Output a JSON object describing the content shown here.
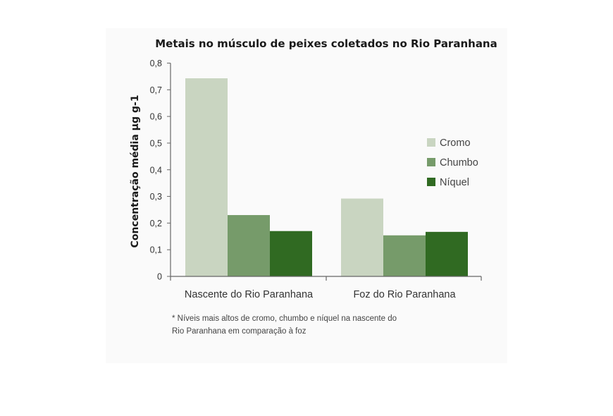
{
  "chart_data": {
    "type": "bar",
    "title": "Metais no músculo de peixes coletados no Rio Paranhana",
    "xlabel": "",
    "ylabel": "Concentração média µg g-1",
    "categories": [
      "Nascente do Rio Paranhana",
      "Foz do Rio Paranhana"
    ],
    "series": [
      {
        "name": "Cromo",
        "color": "#c9d5c1",
        "values": [
          0.743,
          0.292
        ]
      },
      {
        "name": "Chumbo",
        "color": "#769b6a",
        "values": [
          0.23,
          0.154
        ]
      },
      {
        "name": "Níquel",
        "color": "#306a22",
        "values": [
          0.17,
          0.167
        ]
      }
    ],
    "ylim": [
      0,
      0.8
    ],
    "yticks": [
      "0",
      "0,1",
      "0,2",
      "0,3",
      "0,4",
      "0,5",
      "0,6",
      "0,7",
      "0,8"
    ],
    "legend_position": "right",
    "grid": false,
    "note_lines": [
      "* Níveis mais altos de cromo, chumbo e níquel na nascente do",
      "Rio Paranhana em comparação à foz"
    ]
  }
}
